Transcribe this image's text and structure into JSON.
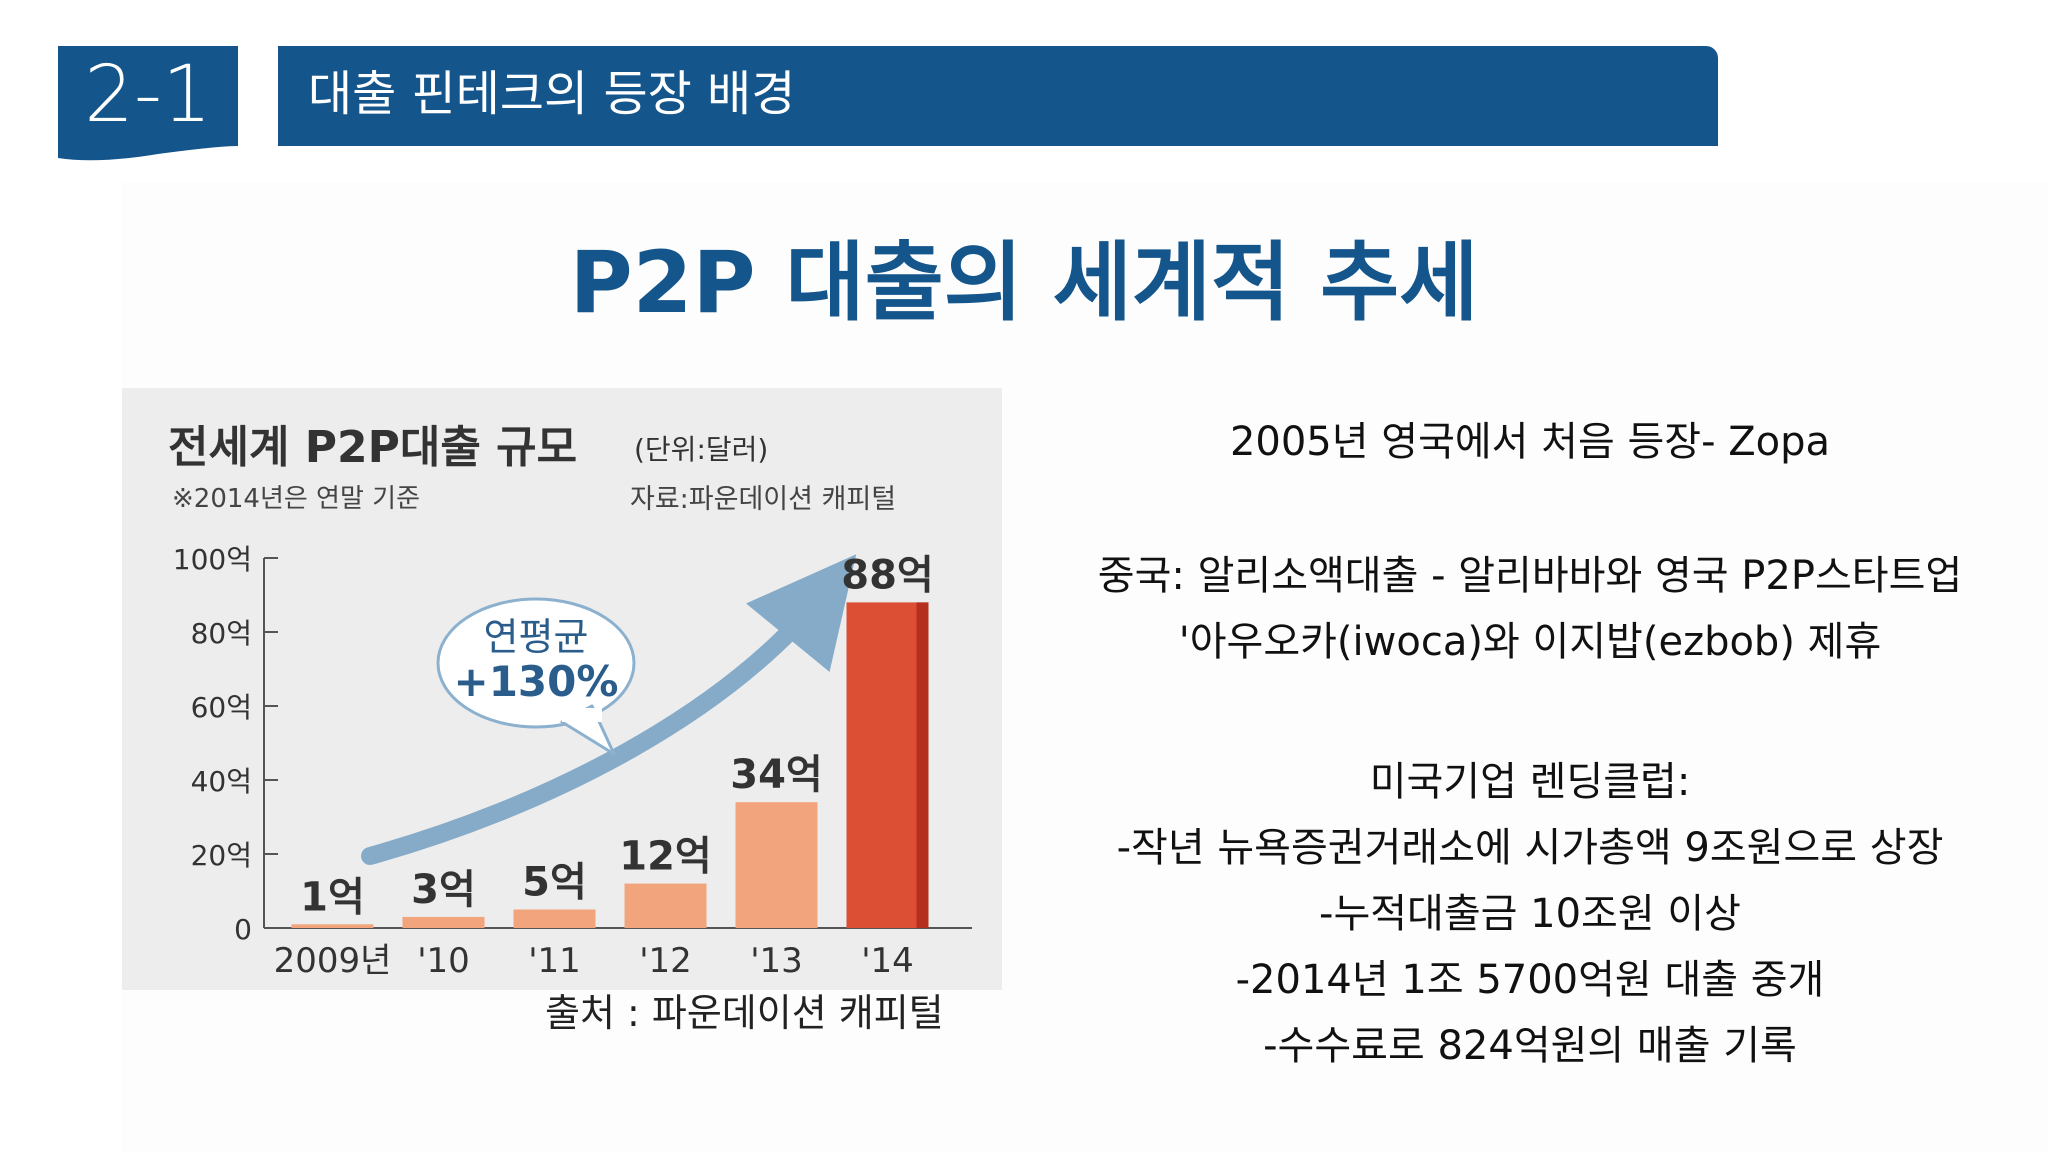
{
  "header": {
    "section_number": "2-1",
    "section_title": "대출 핀테크의 등장 배경"
  },
  "page_title": "P2P 대출의 세계적 추세",
  "chart_panel": {
    "title": "전세계 P2P대출 규모",
    "unit": "(단위:달러)",
    "note": "※2014년은 연말 기준",
    "source_inner": "자료:파운데이션 캐피털",
    "growth_label_line1": "연평균",
    "growth_label_line2": "+130%"
  },
  "chart_data": {
    "type": "bar",
    "title": "전세계 P2P대출 규모",
    "categories": [
      "2009년",
      "'10",
      "'11",
      "'12",
      "'13",
      "'14"
    ],
    "values": [
      1,
      3,
      5,
      12,
      34,
      88
    ],
    "value_labels": [
      "1억",
      "3억",
      "5억",
      "12억",
      "34억",
      "88억"
    ],
    "y_ticks": [
      0,
      20,
      40,
      60,
      80,
      100
    ],
    "y_tick_labels": [
      "0",
      "20억",
      "40억",
      "60억",
      "80억",
      "100억"
    ],
    "ylim": [
      0,
      100
    ],
    "annotation": "연평균 +130%",
    "colors": {
      "bar_light": "#f2a57c",
      "bar_mid": "#f2a57c",
      "bar_highlight": "#dc4f35",
      "bar_highlight_dark": "#b52f1f",
      "trend_arrow": "#85abc9",
      "bubble_text": "#2a5d8c"
    }
  },
  "source_caption": "출처 : 파운데이션 캐피털",
  "right_text": {
    "lines": [
      "2005년 영국에서 처음 등장- Zopa",
      "중국: 알리소액대출  -  알리바바와 영국 P2P스타트업",
      "'아우오카(iwoca)와 이지밥(ezbob) 제휴",
      "미국기업 렌딩클럽:",
      "-작년 뉴욕증권거래소에 시가총액 9조원으로 상장",
      "-누적대출금 10조원 이상",
      "-2014년 1조 5700억원 대출 중개",
      "-수수료로 824억원의 매출 기록"
    ]
  },
  "colors": {
    "brand_blue": "#14558c",
    "text_dark": "#111111"
  }
}
